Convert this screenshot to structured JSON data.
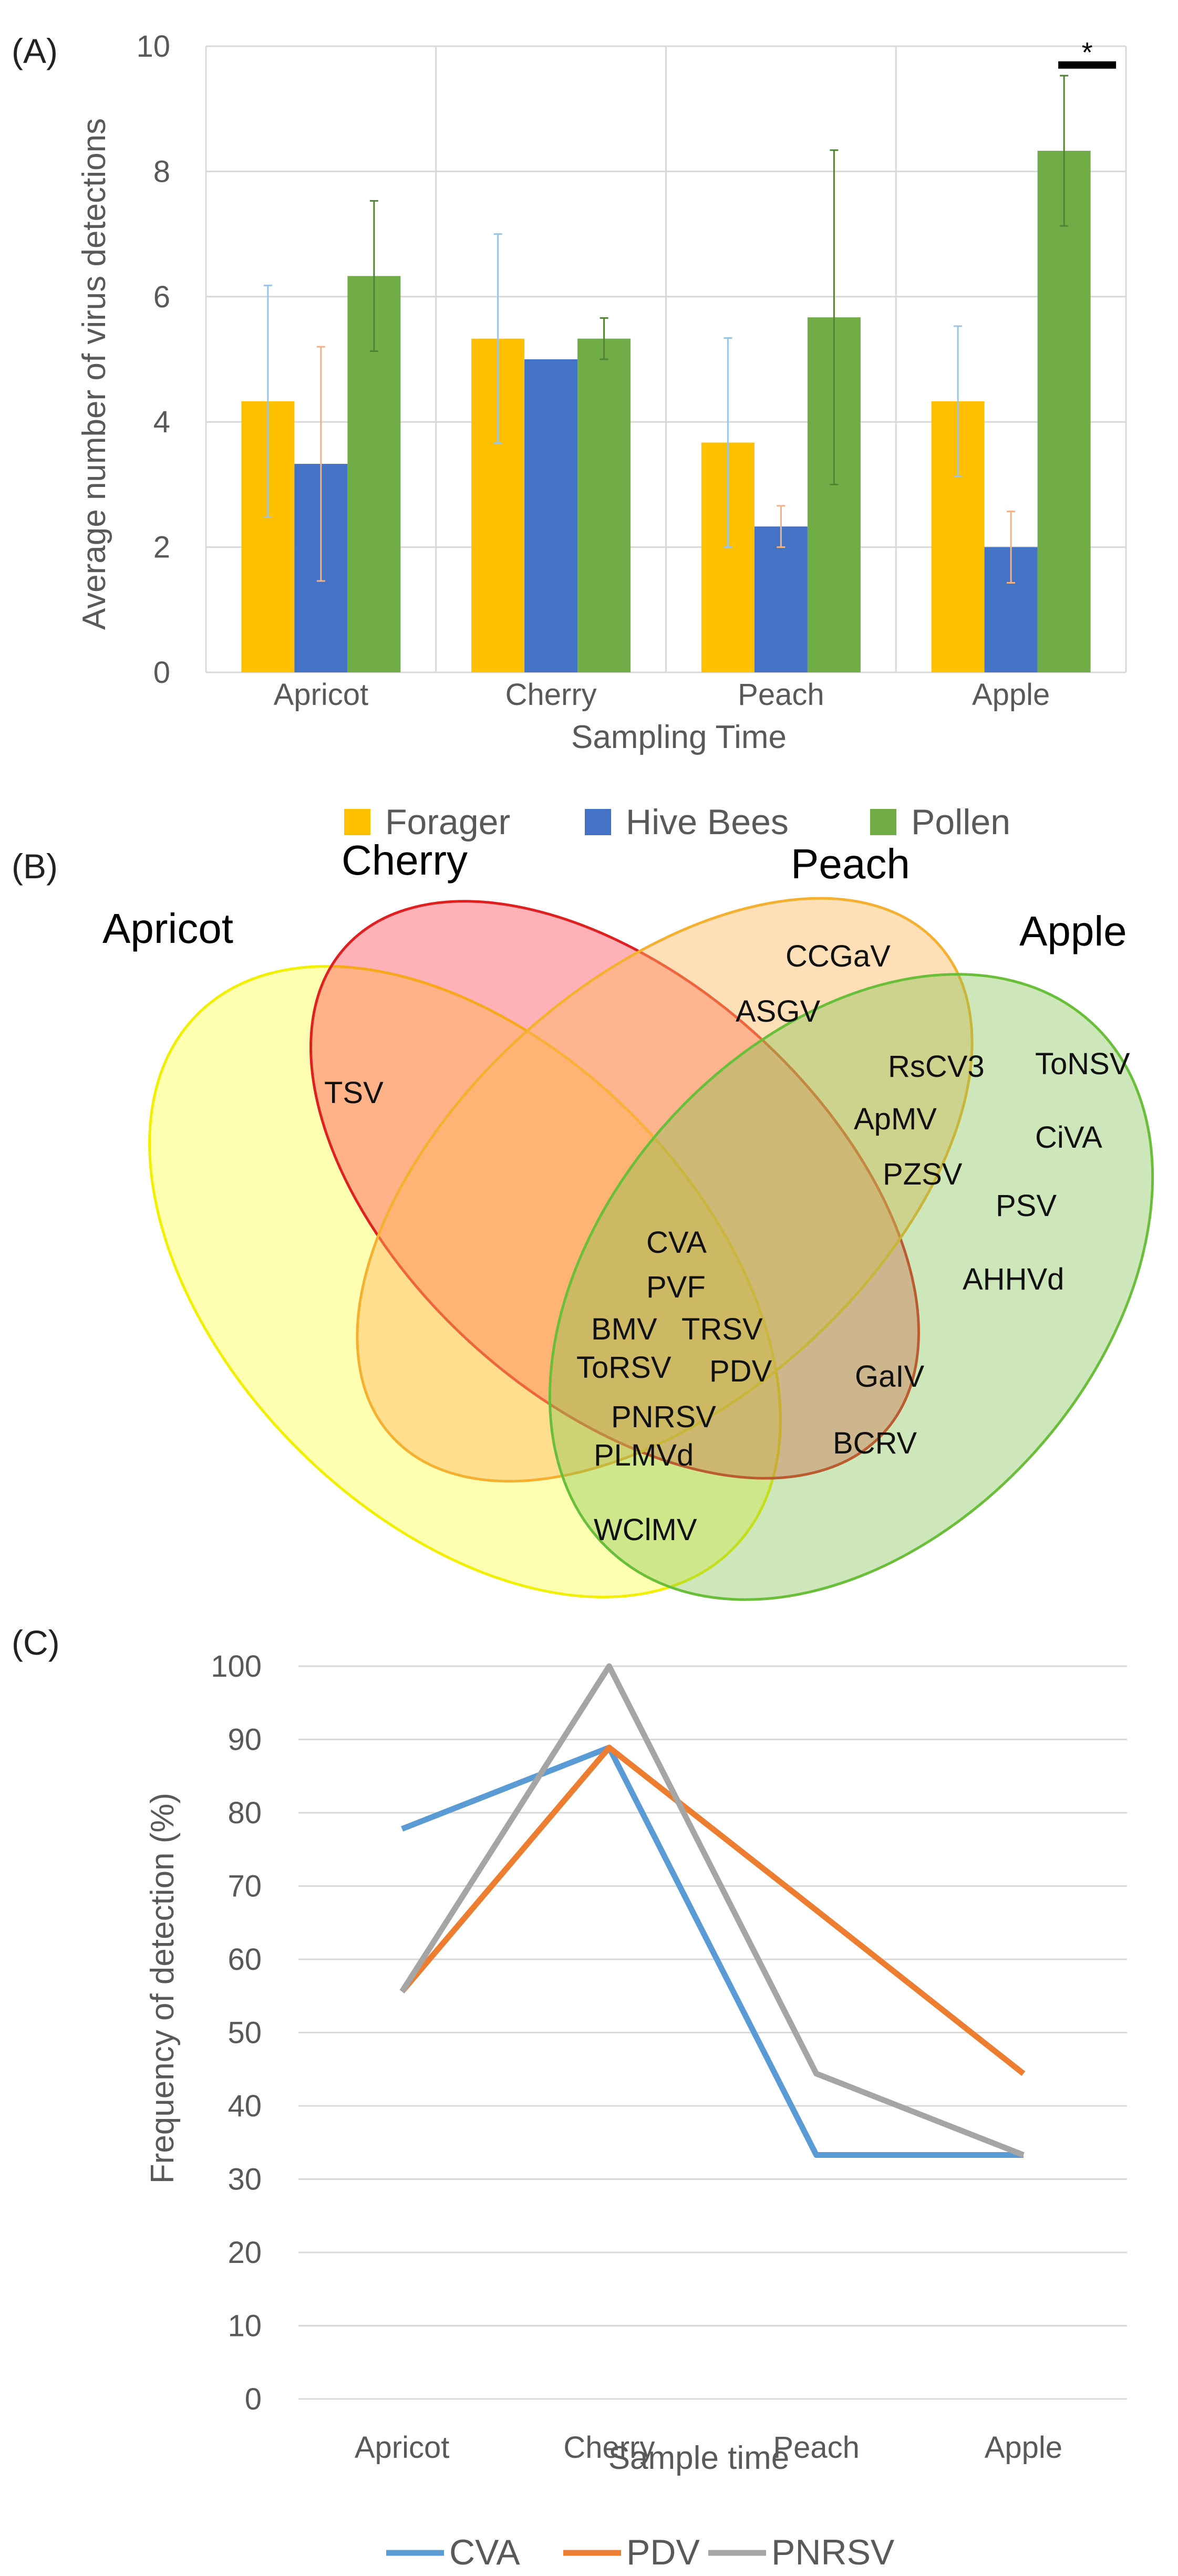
{
  "panels": {
    "a": "(A)",
    "b": "(B)",
    "c": "(C)"
  },
  "chart_data": [
    {
      "type": "bar",
      "panel": "(A)",
      "xlabel": "Sampling Time",
      "ylabel": "Average number of virus detections",
      "ylim": [
        0,
        10
      ],
      "yticks": [
        0,
        2,
        4,
        6,
        8,
        10
      ],
      "categories": [
        "Apricot",
        "Cherry",
        "Peach",
        "Apple"
      ],
      "series": [
        {
          "name": "Forager",
          "color": "#ffc000",
          "errorColor": "#9dc3e6",
          "values": [
            4.33,
            5.33,
            3.67,
            4.33
          ],
          "errors": [
            1.85,
            1.67,
            1.67,
            1.2
          ]
        },
        {
          "name": "Hive Bees",
          "color": "#4472c4",
          "errorColor": "#f4b183",
          "values": [
            3.33,
            5.0,
            2.33,
            2.0
          ],
          "errors": [
            1.87,
            0.0,
            0.33,
            0.57
          ]
        },
        {
          "name": "Pollen",
          "color": "#70ad47",
          "errorColor": "#548235",
          "values": [
            6.33,
            5.33,
            5.67,
            8.33
          ],
          "errors": [
            1.2,
            0.33,
            2.67,
            1.2
          ]
        }
      ],
      "significance": {
        "category": "Apple",
        "label": "*"
      },
      "legend_position": "bottom",
      "grid": true
    },
    {
      "type": "venn",
      "panel": "(B)",
      "sets": [
        {
          "name": "Apricot",
          "color": "#ffff66"
        },
        {
          "name": "Cherry",
          "color": "#ff3344"
        },
        {
          "name": "Peach",
          "color": "#ffb860"
        },
        {
          "name": "Apple",
          "color": "#7cc04a"
        }
      ],
      "regions": [
        {
          "sets": [
            "Apricot",
            "Cherry"
          ],
          "items": [
            "TSV"
          ]
        },
        {
          "sets": [
            "Peach"
          ],
          "items": [
            "CCGaV",
            "ASGV"
          ]
        },
        {
          "sets": [
            "Apple"
          ],
          "items": [
            "ToNSV",
            "CiVA",
            "PSV",
            "AHHVd"
          ]
        },
        {
          "sets": [
            "Peach",
            "Apple"
          ],
          "items": [
            "RsCV3",
            "ApMV",
            "PZSV"
          ]
        },
        {
          "sets": [
            "Apricot",
            "Cherry",
            "Peach",
            "Apple"
          ],
          "items": [
            "CVA",
            "PVF",
            "BMV",
            "TRSV",
            "ToRSV",
            "PDV",
            "PNRSV",
            "PLMVd"
          ]
        },
        {
          "sets": [
            "Cherry",
            "Peach",
            "Apple"
          ],
          "items": [
            "GaIV"
          ]
        },
        {
          "sets": [
            "Cherry",
            "Apple"
          ],
          "items": [
            "BCRV"
          ]
        },
        {
          "sets": [
            "Apricot",
            "Apple"
          ],
          "items": [
            "WClMV"
          ]
        }
      ]
    },
    {
      "type": "line",
      "panel": "(C)",
      "xlabel": "Sample time",
      "ylabel": "Frequency of detection (%)",
      "ylim": [
        0,
        100
      ],
      "yticks": [
        0,
        10,
        20,
        30,
        40,
        50,
        60,
        70,
        80,
        90,
        100
      ],
      "categories": [
        "Apricot",
        "Cherry",
        "Peach",
        "Apple"
      ],
      "series": [
        {
          "name": "CVA",
          "color": "#5b9bd5",
          "values": [
            77.8,
            88.9,
            33.3,
            33.3
          ]
        },
        {
          "name": "PDV",
          "color": "#ed7d31",
          "values": [
            55.6,
            88.9,
            66.7,
            44.4
          ]
        },
        {
          "name": "PNRSV",
          "color": "#a5a5a5",
          "values": [
            55.6,
            100,
            44.4,
            33.3
          ]
        }
      ],
      "legend_position": "bottom",
      "grid": true
    }
  ]
}
